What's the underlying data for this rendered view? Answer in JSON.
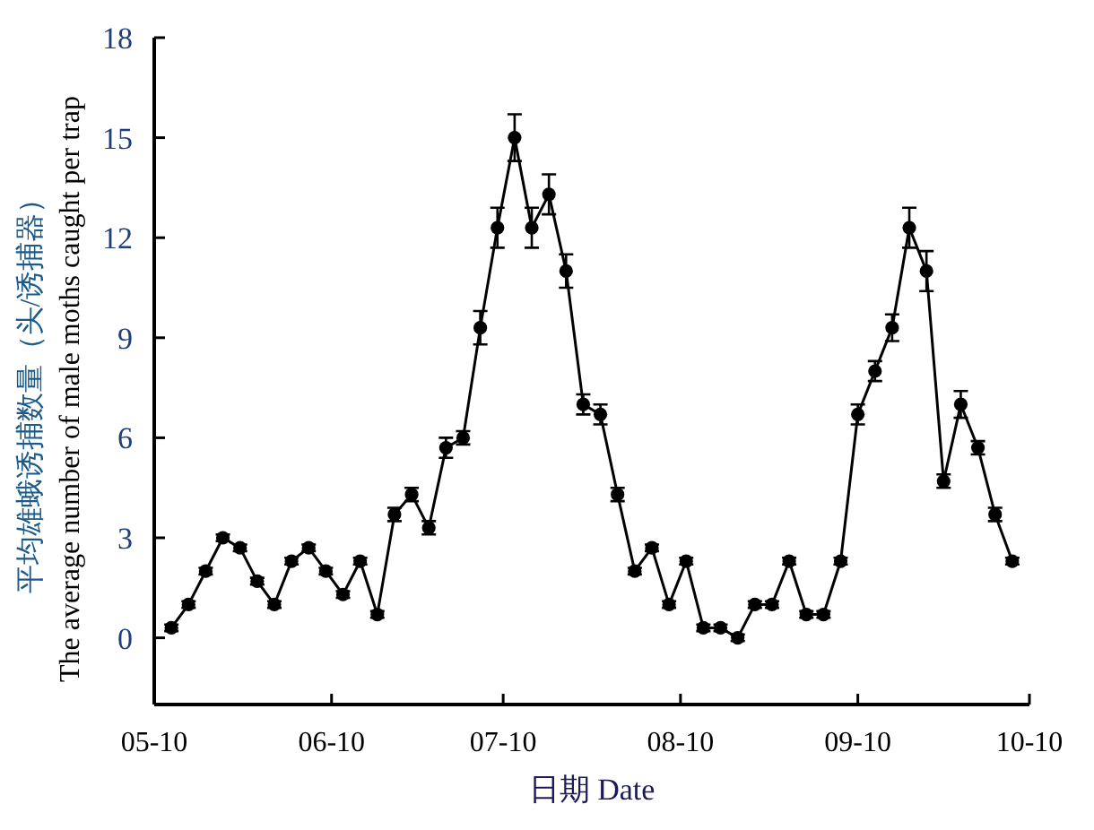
{
  "chart_data": {
    "type": "line",
    "xlabel": "日期 Date",
    "ylabel": "平均雄蛾诱捕数量（头/诱捕器）\nThe average number of male moths caught per trap",
    "xlim": [
      "--05-10",
      "--10-10"
    ],
    "xticks": [
      {
        "value": "--05-10",
        "label": "05-10"
      },
      {
        "value": "--06-10",
        "label": "06-10"
      },
      {
        "value": "--07-10",
        "label": "07-10"
      },
      {
        "value": "--08-10",
        "label": "08-10"
      },
      {
        "value": "--09-10",
        "label": "09-10"
      },
      {
        "value": "--10-10",
        "label": "10-10"
      }
    ],
    "ylim": [
      -2,
      18
    ],
    "yticks": [
      0,
      3,
      6,
      9,
      12,
      15,
      18
    ],
    "x": [
      "--05-13",
      "--05-16",
      "--05-19",
      "--05-22",
      "--05-25",
      "--05-28",
      "--05-31",
      "--06-03",
      "--06-06",
      "--06-09",
      "--06-12",
      "--06-15",
      "--06-18",
      "--06-21",
      "--06-24",
      "--06-27",
      "--06-30",
      "--07-03",
      "--07-06",
      "--07-09",
      "--07-12",
      "--07-15",
      "--07-18",
      "--07-21",
      "--07-24",
      "--07-27",
      "--07-30",
      "--08-02",
      "--08-05",
      "--08-08",
      "--08-11",
      "--08-14",
      "--08-17",
      "--08-20",
      "--08-23",
      "--08-26",
      "--08-29",
      "--09-01",
      "--09-04",
      "--09-07",
      "--09-10",
      "--09-13",
      "--09-16",
      "--09-19",
      "--09-22",
      "--09-25",
      "--09-28",
      "--10-01",
      "--10-04",
      "--10-07"
    ],
    "series": [
      {
        "color": "#000000",
        "values": [
          0.3,
          1.0,
          2.0,
          3.0,
          2.7,
          1.7,
          1.0,
          2.3,
          2.7,
          2.0,
          1.3,
          2.3,
          0.7,
          3.7,
          4.3,
          3.3,
          5.7,
          6.0,
          9.3,
          12.3,
          15.0,
          12.3,
          13.3,
          11.0,
          7.0,
          6.7,
          4.3,
          2.0,
          2.7,
          1.0,
          2.3,
          0.3,
          0.3,
          0.0,
          1.0,
          1.0,
          2.3,
          0.7,
          0.7,
          2.3,
          6.7,
          8.0,
          9.3,
          12.3,
          11.0,
          4.7,
          7.0,
          5.7,
          3.7,
          2.3
        ],
        "errors": [
          0.1,
          0.1,
          0.1,
          0.1,
          0.1,
          0.1,
          0.1,
          0.1,
          0.1,
          0.1,
          0.1,
          0.1,
          0.1,
          0.2,
          0.2,
          0.2,
          0.3,
          0.2,
          0.5,
          0.6,
          0.7,
          0.6,
          0.6,
          0.5,
          0.3,
          0.3,
          0.2,
          0.1,
          0.1,
          0.1,
          0.1,
          0.1,
          0.1,
          0.1,
          0.1,
          0.1,
          0.1,
          0.1,
          0.1,
          0.1,
          0.3,
          0.3,
          0.4,
          0.6,
          0.6,
          0.2,
          0.4,
          0.2,
          0.2,
          0.1
        ]
      }
    ],
    "marker": "circle",
    "line_style": "solid"
  }
}
